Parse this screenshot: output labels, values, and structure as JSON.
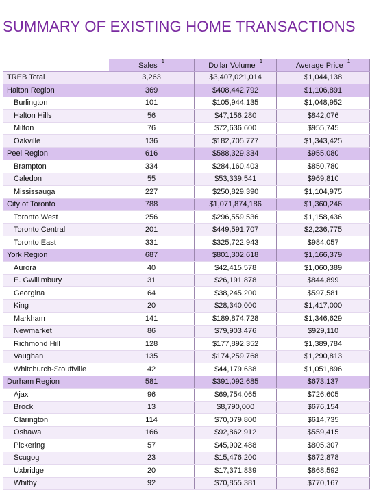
{
  "title": "SUMMARY OF EXISTING HOME TRANSACTIONS",
  "headers": {
    "sales": "Sales",
    "dollar_volume": "Dollar Volume",
    "average_price": "Average Price",
    "footnote": "1"
  },
  "rows": [
    {
      "name": "TREB Total",
      "sales": "3,263",
      "dollar": "$3,407,021,014",
      "avg": "$1,044,138",
      "kind": "total"
    },
    {
      "name": "Halton Region",
      "sales": "369",
      "dollar": "$408,442,792",
      "avg": "$1,106,891",
      "kind": "region"
    },
    {
      "name": "Burlington",
      "sales": "101",
      "dollar": "$105,944,135",
      "avg": "$1,048,952",
      "kind": "sub"
    },
    {
      "name": "Halton Hills",
      "sales": "56",
      "dollar": "$47,156,280",
      "avg": "$842,076",
      "kind": "sub"
    },
    {
      "name": "Milton",
      "sales": "76",
      "dollar": "$72,636,600",
      "avg": "$955,745",
      "kind": "sub"
    },
    {
      "name": "Oakville",
      "sales": "136",
      "dollar": "$182,705,777",
      "avg": "$1,343,425",
      "kind": "sub"
    },
    {
      "name": "Peel Region",
      "sales": "616",
      "dollar": "$588,329,334",
      "avg": "$955,080",
      "kind": "region"
    },
    {
      "name": "Brampton",
      "sales": "334",
      "dollar": "$284,160,403",
      "avg": "$850,780",
      "kind": "sub"
    },
    {
      "name": "Caledon",
      "sales": "55",
      "dollar": "$53,339,541",
      "avg": "$969,810",
      "kind": "sub"
    },
    {
      "name": "Mississauga",
      "sales": "227",
      "dollar": "$250,829,390",
      "avg": "$1,104,975",
      "kind": "sub"
    },
    {
      "name": "City of Toronto",
      "sales": "788",
      "dollar": "$1,071,874,186",
      "avg": "$1,360,246",
      "kind": "region"
    },
    {
      "name": "Toronto West",
      "sales": "256",
      "dollar": "$296,559,536",
      "avg": "$1,158,436",
      "kind": "sub"
    },
    {
      "name": "Toronto Central",
      "sales": "201",
      "dollar": "$449,591,707",
      "avg": "$2,236,775",
      "kind": "sub"
    },
    {
      "name": "Toronto East",
      "sales": "331",
      "dollar": "$325,722,943",
      "avg": "$984,057",
      "kind": "sub"
    },
    {
      "name": "York Region",
      "sales": "687",
      "dollar": "$801,302,618",
      "avg": "$1,166,379",
      "kind": "region"
    },
    {
      "name": "Aurora",
      "sales": "40",
      "dollar": "$42,415,578",
      "avg": "$1,060,389",
      "kind": "sub"
    },
    {
      "name": "E. Gwillimbury",
      "sales": "31",
      "dollar": "$26,191,878",
      "avg": "$844,899",
      "kind": "sub"
    },
    {
      "name": "Georgina",
      "sales": "64",
      "dollar": "$38,245,200",
      "avg": "$597,581",
      "kind": "sub"
    },
    {
      "name": "King",
      "sales": "20",
      "dollar": "$28,340,000",
      "avg": "$1,417,000",
      "kind": "sub"
    },
    {
      "name": "Markham",
      "sales": "141",
      "dollar": "$189,874,728",
      "avg": "$1,346,629",
      "kind": "sub"
    },
    {
      "name": "Newmarket",
      "sales": "86",
      "dollar": "$79,903,476",
      "avg": "$929,110",
      "kind": "sub"
    },
    {
      "name": "Richmond Hill",
      "sales": "128",
      "dollar": "$177,892,352",
      "avg": "$1,389,784",
      "kind": "sub"
    },
    {
      "name": "Vaughan",
      "sales": "135",
      "dollar": "$174,259,768",
      "avg": "$1,290,813",
      "kind": "sub"
    },
    {
      "name": "Whitchurch-Stouffville",
      "sales": "42",
      "dollar": "$44,179,638",
      "avg": "$1,051,896",
      "kind": "sub"
    },
    {
      "name": "Durham Region",
      "sales": "581",
      "dollar": "$391,092,685",
      "avg": "$673,137",
      "kind": "region"
    },
    {
      "name": "Ajax",
      "sales": "96",
      "dollar": "$69,754,065",
      "avg": "$726,605",
      "kind": "sub"
    },
    {
      "name": "Brock",
      "sales": "13",
      "dollar": "$8,790,000",
      "avg": "$676,154",
      "kind": "sub"
    },
    {
      "name": "Clarington",
      "sales": "114",
      "dollar": "$70,079,800",
      "avg": "$614,735",
      "kind": "sub"
    },
    {
      "name": "Oshawa",
      "sales": "166",
      "dollar": "$92,862,912",
      "avg": "$559,415",
      "kind": "sub"
    },
    {
      "name": "Pickering",
      "sales": "57",
      "dollar": "$45,902,488",
      "avg": "$805,307",
      "kind": "sub"
    },
    {
      "name": "Scugog",
      "sales": "23",
      "dollar": "$15,476,200",
      "avg": "$672,878",
      "kind": "sub"
    },
    {
      "name": "Uxbridge",
      "sales": "20",
      "dollar": "$17,371,839",
      "avg": "$868,592",
      "kind": "sub"
    },
    {
      "name": "Whitby",
      "sales": "92",
      "dollar": "$70,855,381",
      "avg": "$770,167",
      "kind": "sub"
    }
  ]
}
